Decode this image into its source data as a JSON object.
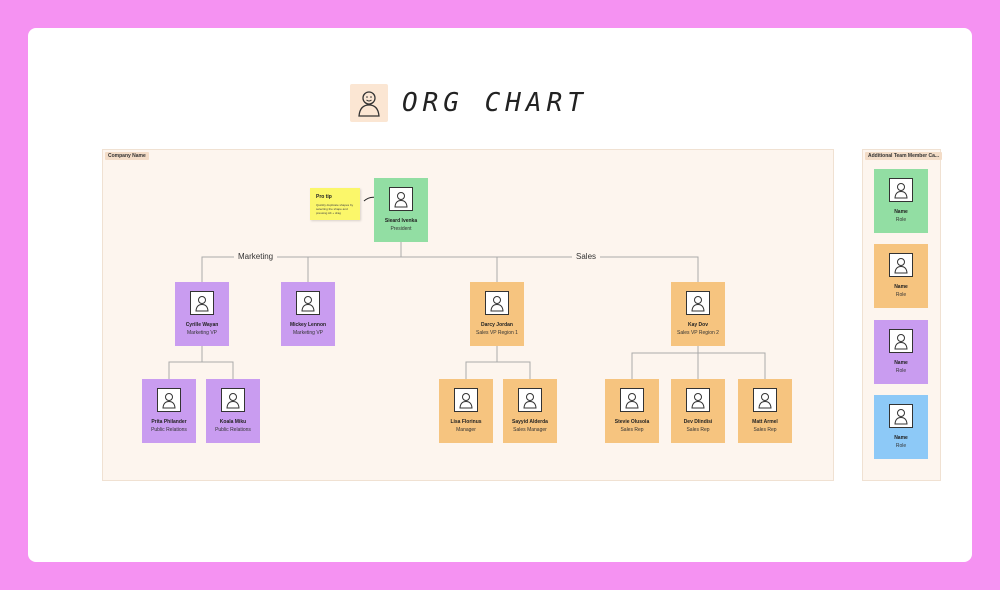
{
  "title": "ORG CHART",
  "sections": {
    "main_label": "Company Name",
    "side_label": "Additional Team Member Ca..."
  },
  "tip": {
    "heading": "Pro tip",
    "body": "Quickly duplicate shapes by selecting the shape and pressing Alt + drag"
  },
  "departments": {
    "marketing": "Marketing",
    "sales": "Sales"
  },
  "people": {
    "president": {
      "name": "Sieard Ivenka",
      "role": "President"
    },
    "cyrille": {
      "name": "Cyrille Wayan",
      "role": "Marketing VP"
    },
    "mickey": {
      "name": "Mickey Lennon",
      "role": "Marketing VP"
    },
    "darcy": {
      "name": "Darcy Jordan",
      "role": "Sales VP Region 1"
    },
    "kay": {
      "name": "Kay Dov",
      "role": "Sales VP Region 2"
    },
    "prita": {
      "name": "Prita Philander",
      "role": "Public Relations"
    },
    "koala": {
      "name": "Koala Miku",
      "role": "Public Relations"
    },
    "lisa": {
      "name": "Lisa Florinus",
      "role": "Manager"
    },
    "sayyid": {
      "name": "Sayyid Alderda",
      "role": "Sales Manager"
    },
    "stevie": {
      "name": "Stevie Olusola",
      "role": "Sales Rep"
    },
    "dev": {
      "name": "Dev Dlindisi",
      "role": "Sales Rep"
    },
    "matt": {
      "name": "Matt Armel",
      "role": "Sales Rep"
    }
  },
  "templates": [
    {
      "name": "Name",
      "role": "Role",
      "color": "green"
    },
    {
      "name": "Name",
      "role": "Role",
      "color": "orange"
    },
    {
      "name": "Name",
      "role": "Role",
      "color": "purple"
    },
    {
      "name": "Name",
      "role": "Role",
      "color": "blue"
    }
  ],
  "colors": {
    "frame": "#f592f2",
    "green": "#92dea3",
    "purple": "#c99cf0",
    "orange": "#f6c47f",
    "blue": "#8dc9f7",
    "sticky": "#fbf76a"
  },
  "icons": [
    "person-icon",
    "arrow-icon"
  ]
}
